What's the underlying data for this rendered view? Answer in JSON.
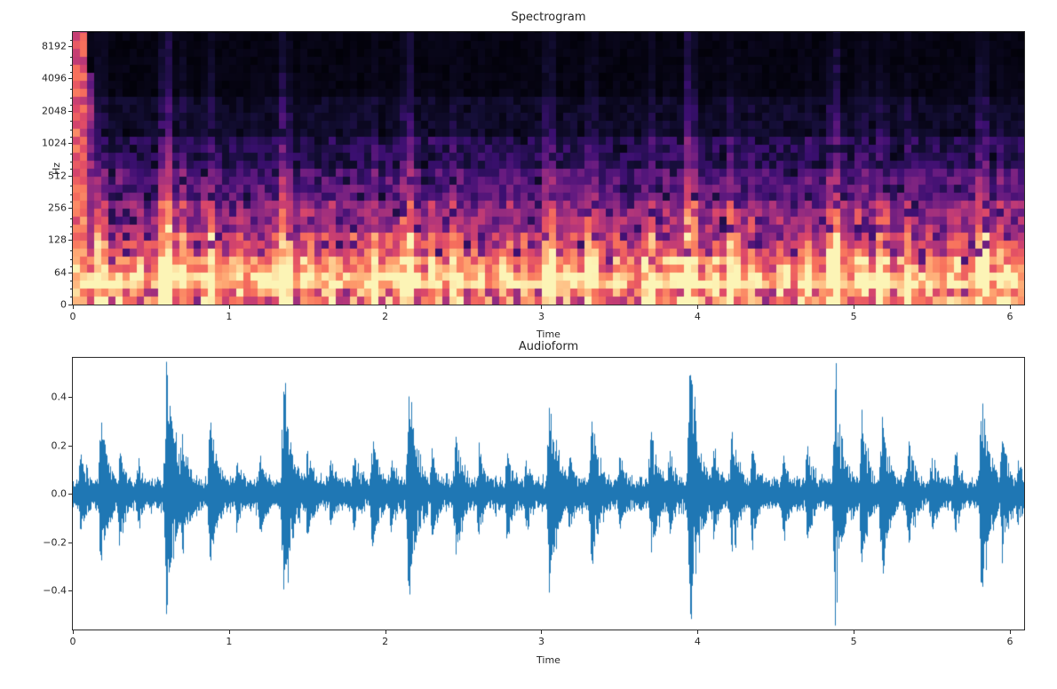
{
  "figure": {
    "background": "#ffffff",
    "text_color": "#262626"
  },
  "chart_data": [
    {
      "type": "heatmap",
      "name": "spectrogram",
      "title": "Spectrogram",
      "xlabel": "Time",
      "ylabel": "Hz",
      "x_range": [
        0,
        6.09
      ],
      "x_tick_values": [
        0,
        1,
        2,
        3,
        4,
        5,
        6
      ],
      "x_tick_labels": [
        "0",
        "1",
        "2",
        "3",
        "4",
        "5",
        "6"
      ],
      "y_tick_labels": [
        "8192",
        "4096",
        "2048",
        "1024",
        "512",
        "256",
        "128",
        "64",
        "0"
      ],
      "y_axis_scale": "log-frequency",
      "grid": false,
      "legend": "none",
      "colormap": "magma",
      "colormap_stops": [
        "#000004",
        "#140e36",
        "#3b0f70",
        "#641a80",
        "#8c2981",
        "#b73779",
        "#de4968",
        "#f7705c",
        "#fe9f6d",
        "#fecf92",
        "#fcfdbf"
      ],
      "description": "Dark background with bright orange-yellow low-frequency band below ~128 Hz, purple vertical onset streaks rising toward high frequencies at each transient, and a bright magenta column at time 0",
      "onset_times": [
        0.05,
        0.18,
        0.3,
        0.42,
        0.6,
        0.7,
        0.88,
        1.05,
        1.2,
        1.35,
        1.5,
        1.65,
        1.8,
        1.92,
        2.04,
        2.15,
        2.3,
        2.45,
        2.6,
        2.78,
        2.9,
        3.05,
        3.18,
        3.32,
        3.5,
        3.7,
        3.82,
        3.95,
        4.1,
        4.22,
        4.35,
        4.55,
        4.7,
        4.88,
        5.05,
        5.18,
        5.35,
        5.5,
        5.65,
        5.82,
        5.95,
        6.05
      ]
    },
    {
      "type": "line",
      "name": "audioform",
      "title": "Audioform",
      "xlabel": "Time",
      "x_range": [
        0,
        6.09
      ],
      "x_tick_values": [
        0,
        1,
        2,
        3,
        4,
        5,
        6
      ],
      "x_tick_labels": [
        "0",
        "1",
        "2",
        "3",
        "4",
        "5",
        "6"
      ],
      "y_tick_values": [
        0.4,
        0.2,
        0.0,
        -0.2,
        -0.4
      ],
      "y_tick_labels": [
        "0.4",
        "0.2",
        "0.0",
        "−0.2",
        "−0.4"
      ],
      "y_range": [
        -0.56,
        0.56
      ],
      "grid": false,
      "legend": "none",
      "line_color": "#1f77b4",
      "noise_floor": 0.05,
      "events": [
        [
          0.05,
          0.16
        ],
        [
          0.18,
          0.3
        ],
        [
          0.3,
          0.17
        ],
        [
          0.42,
          0.12
        ],
        [
          0.6,
          0.5
        ],
        [
          0.7,
          0.25
        ],
        [
          0.88,
          0.3
        ],
        [
          1.05,
          0.13
        ],
        [
          1.2,
          0.16
        ],
        [
          1.35,
          0.43
        ],
        [
          1.5,
          0.18
        ],
        [
          1.65,
          0.14
        ],
        [
          1.8,
          0.15
        ],
        [
          1.92,
          0.22
        ],
        [
          2.04,
          0.14
        ],
        [
          2.15,
          0.41
        ],
        [
          2.3,
          0.18
        ],
        [
          2.45,
          0.24
        ],
        [
          2.6,
          0.16
        ],
        [
          2.78,
          0.17
        ],
        [
          2.9,
          0.14
        ],
        [
          3.05,
          0.36
        ],
        [
          3.18,
          0.15
        ],
        [
          3.32,
          0.3
        ],
        [
          3.5,
          0.15
        ],
        [
          3.7,
          0.26
        ],
        [
          3.82,
          0.18
        ],
        [
          3.95,
          0.5
        ],
        [
          4.1,
          0.18
        ],
        [
          4.22,
          0.26
        ],
        [
          4.35,
          0.18
        ],
        [
          4.55,
          0.16
        ],
        [
          4.7,
          0.2
        ],
        [
          4.88,
          0.44
        ],
        [
          5.05,
          0.28
        ],
        [
          5.18,
          0.3
        ],
        [
          5.35,
          0.22
        ],
        [
          5.5,
          0.15
        ],
        [
          5.65,
          0.16
        ],
        [
          5.82,
          0.38
        ],
        [
          5.95,
          0.22
        ],
        [
          6.05,
          0.14
        ]
      ]
    }
  ]
}
